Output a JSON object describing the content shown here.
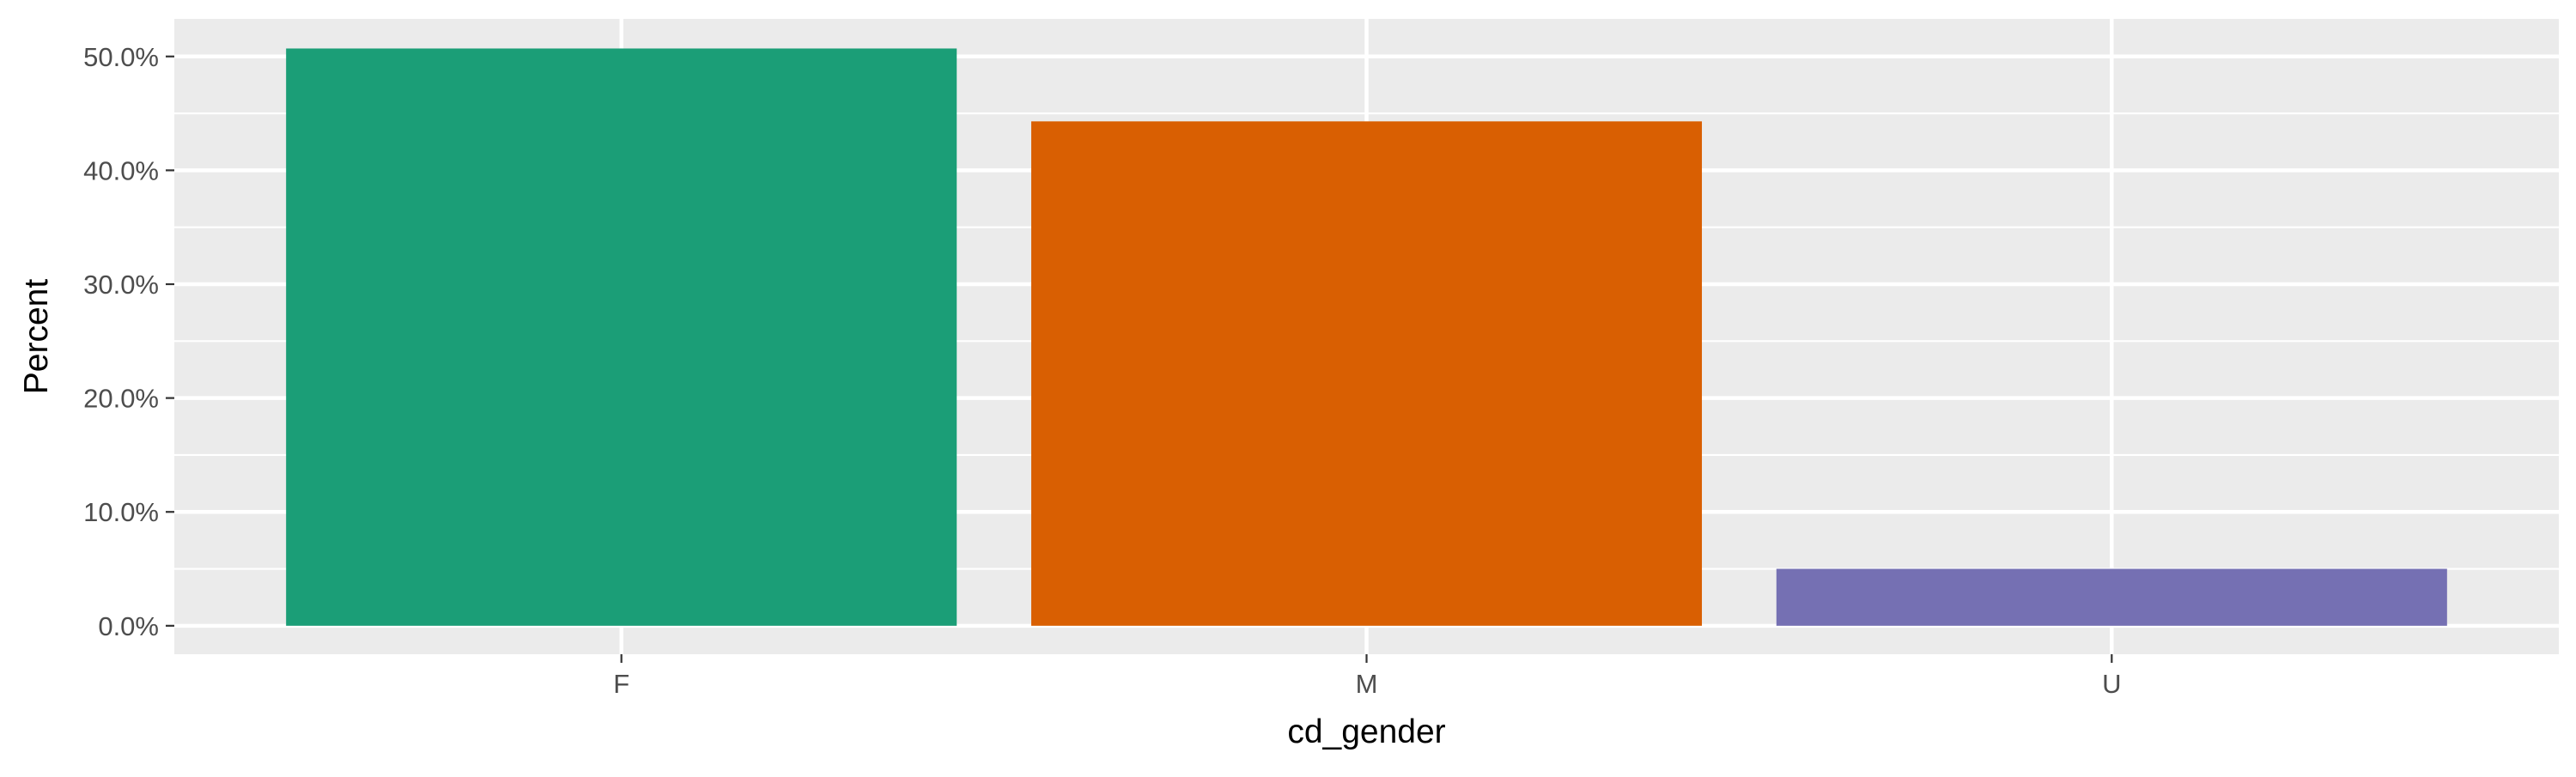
{
  "chart_data": {
    "type": "bar",
    "title": "",
    "xlabel": "cd_gender",
    "ylabel": "Percent",
    "categories": [
      "F",
      "M",
      "U"
    ],
    "values": [
      50.7,
      44.3,
      5.0
    ],
    "ylim": [
      -2.5,
      53.3
    ],
    "yticks": [
      0,
      10,
      20,
      30,
      40,
      50
    ],
    "ytick_labels": [
      "0.0%",
      "10.0%",
      "20.0%",
      "30.0%",
      "40.0%",
      "50.0%"
    ],
    "colors": [
      "#1b9e77",
      "#d95f02",
      "#7570b3"
    ],
    "panel_background": "#ebebeb",
    "grid_color": "#ffffff",
    "grid": true,
    "legend": "none"
  }
}
